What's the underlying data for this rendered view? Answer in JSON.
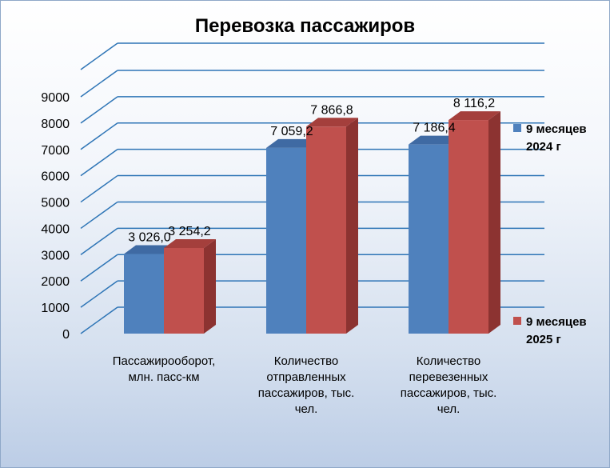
{
  "title": "Перевозка пассажиров",
  "chart_data": {
    "type": "bar",
    "title": "Перевозка пассажиров",
    "categories": [
      [
        "Пассажирооборот,",
        "млн. пасс-км"
      ],
      [
        "Количество",
        "отправленных",
        "пассажиров, тыс.",
        "чел."
      ],
      [
        "Количество",
        "перевезенных",
        "пассажиров, тыс.",
        "чел."
      ]
    ],
    "series": [
      {
        "name_lines": [
          "9 месяцев",
          "2024 г"
        ],
        "color": "#4f81bd",
        "side": "#385d8a",
        "top": "#3f6aa3",
        "values": [
          3026.0,
          7059.2,
          7186.4
        ],
        "labels": [
          "3 026,0",
          "7 059,2",
          "7 186,4"
        ]
      },
      {
        "name_lines": [
          "9 месяцев",
          "2025 г"
        ],
        "color": "#c0504d",
        "side": "#8c3331",
        "top": "#a43f3c",
        "values": [
          3254.2,
          7866.8,
          8116.2
        ],
        "labels": [
          "3 254,2",
          "7 866,8",
          "8 116,2"
        ]
      }
    ],
    "yticks": [
      "0",
      "1000",
      "2000",
      "3000",
      "4000",
      "5000",
      "6000",
      "7000",
      "8000",
      "9000"
    ],
    "ylim": [
      0,
      9000
    ],
    "grid": true,
    "legend": "right",
    "three_d": true
  }
}
